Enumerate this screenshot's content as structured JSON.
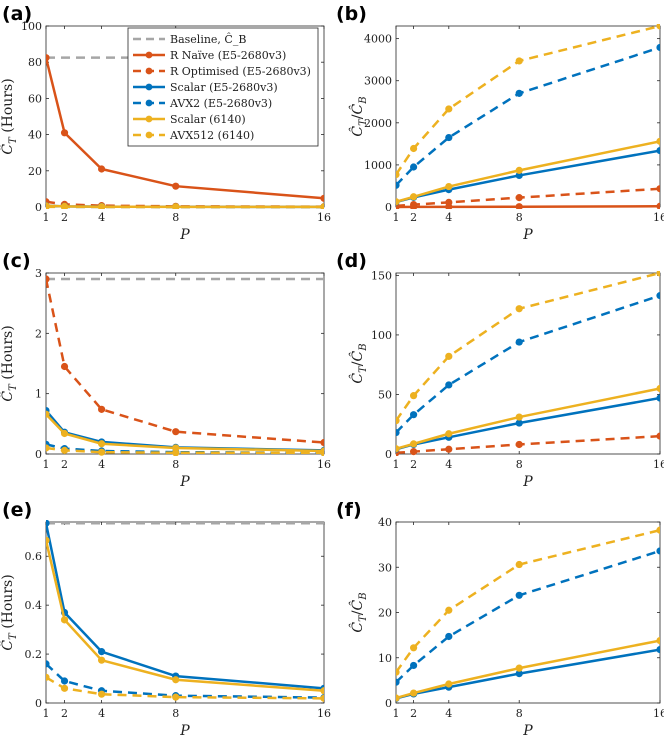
{
  "colors": {
    "baseline": "#a6a6a6",
    "red": "#d95319",
    "blue": "#0072bd",
    "yellow": "#edb120"
  },
  "legend": {
    "position": "top-right of panel (a)",
    "entries": [
      {
        "label": "Baseline, Ĉ_B",
        "color": "#a6a6a6",
        "style": "dashed",
        "marker": false
      },
      {
        "label": "R Naïve (E5-2680v3)",
        "color": "#d95319",
        "style": "solid",
        "marker": true
      },
      {
        "label": "R Optimised (E5-2680v3)",
        "color": "#d95319",
        "style": "dashed",
        "marker": true
      },
      {
        "label": "Scalar (E5-2680v3)",
        "color": "#0072bd",
        "style": "solid",
        "marker": true
      },
      {
        "label": "AVX2 (E5-2680v3)",
        "color": "#0072bd",
        "style": "dashed",
        "marker": true
      },
      {
        "label": "Scalar (6140)",
        "color": "#edb120",
        "style": "solid",
        "marker": true
      },
      {
        "label": "AVX512 (6140)",
        "color": "#edb120",
        "style": "dashed",
        "marker": true
      }
    ]
  },
  "chart_data": [
    {
      "panel": "(a)",
      "type": "line",
      "xlabel": "P",
      "ylabel": "Ĉ_T (Hours)",
      "x": [
        1,
        2,
        4,
        8,
        16
      ],
      "xticks": [
        1,
        2,
        4,
        8,
        16
      ],
      "xlim": [
        1,
        16
      ],
      "ylim": [
        0,
        100
      ],
      "yticks": [
        0,
        20,
        40,
        60,
        80,
        100
      ],
      "grid": false,
      "baseline": {
        "value": 82.5,
        "x_range": [
          1,
          8
        ]
      },
      "series": [
        {
          "name": "R Naïve (E5-2680v3)",
          "color": "red",
          "dashed": false,
          "values": [
            82.5,
            41.0,
            21.0,
            11.5,
            4.8
          ]
        },
        {
          "name": "R Optimised (E5-2680v3)",
          "color": "red",
          "dashed": true,
          "values": [
            2.9,
            1.45,
            0.75,
            0.37,
            0.19
          ]
        },
        {
          "name": "Scalar (E5-2680v3)",
          "color": "blue",
          "dashed": false,
          "values": [
            0.7,
            0.36,
            0.2,
            0.11,
            0.06
          ]
        },
        {
          "name": "AVX2 (E5-2680v3)",
          "color": "blue",
          "dashed": true,
          "values": [
            0.16,
            0.09,
            0.05,
            0.03,
            0.02
          ]
        },
        {
          "name": "Scalar (6140)",
          "color": "yellow",
          "dashed": false,
          "values": [
            0.66,
            0.34,
            0.17,
            0.1,
            0.05
          ]
        },
        {
          "name": "AVX512 (6140)",
          "color": "yellow",
          "dashed": true,
          "values": [
            0.1,
            0.06,
            0.03,
            0.02,
            0.02
          ]
        }
      ]
    },
    {
      "panel": "(b)",
      "type": "line",
      "xlabel": "P",
      "ylabel": "Ĉ_T/Ĉ_B",
      "x": [
        1,
        2,
        4,
        8,
        16
      ],
      "xticks": [
        1,
        2,
        4,
        8,
        16
      ],
      "xlim": [
        1,
        16
      ],
      "ylim": [
        0,
        4300
      ],
      "yticks": [
        0,
        1000,
        2000,
        3000,
        4000
      ],
      "grid": false,
      "series": [
        {
          "name": "R Naïve (E5-2680v3)",
          "color": "red",
          "dashed": false,
          "values": [
            1,
            2,
            4,
            7,
            17
          ]
        },
        {
          "name": "R Optimised (E5-2680v3)",
          "color": "red",
          "dashed": true,
          "values": [
            28,
            57,
            110,
            223,
            434
          ]
        },
        {
          "name": "Scalar (E5-2680v3)",
          "color": "blue",
          "dashed": false,
          "values": [
            118,
            229,
            413,
            750,
            1340
          ]
        },
        {
          "name": "AVX2 (E5-2680v3)",
          "color": "blue",
          "dashed": true,
          "values": [
            516,
            950,
            1650,
            2700,
            3790
          ]
        },
        {
          "name": "Scalar (6140)",
          "color": "yellow",
          "dashed": false,
          "values": [
            125,
            243,
            485,
            870,
            1560
          ]
        },
        {
          "name": "AVX512 (6140)",
          "color": "yellow",
          "dashed": true,
          "values": [
            770,
            1390,
            2330,
            3470,
            4300
          ]
        }
      ]
    },
    {
      "panel": "(c)",
      "type": "line",
      "xlabel": "P",
      "ylabel": "Ĉ_T (Hours)",
      "x": [
        1,
        2,
        4,
        8,
        16
      ],
      "xticks": [
        1,
        2,
        4,
        8,
        16
      ],
      "xlim": [
        1,
        16
      ],
      "ylim": [
        0,
        3
      ],
      "yticks": [
        0,
        1,
        2,
        3
      ],
      "grid": false,
      "baseline": {
        "value": 2.9,
        "x_range": [
          1,
          16
        ]
      },
      "series": [
        {
          "name": "R Optimised (E5-2680v3)",
          "color": "red",
          "dashed": true,
          "values": [
            2.9,
            1.45,
            0.74,
            0.37,
            0.19
          ]
        },
        {
          "name": "Scalar (E5-2680v3)",
          "color": "blue",
          "dashed": false,
          "values": [
            0.72,
            0.36,
            0.2,
            0.11,
            0.06
          ]
        },
        {
          "name": "AVX2 (E5-2680v3)",
          "color": "blue",
          "dashed": true,
          "values": [
            0.16,
            0.09,
            0.05,
            0.03,
            0.02
          ]
        },
        {
          "name": "Scalar (6140)",
          "color": "yellow",
          "dashed": false,
          "values": [
            0.66,
            0.34,
            0.17,
            0.1,
            0.05
          ]
        },
        {
          "name": "AVX512 (6140)",
          "color": "yellow",
          "dashed": true,
          "values": [
            0.1,
            0.06,
            0.03,
            0.02,
            0.02
          ]
        }
      ]
    },
    {
      "panel": "(d)",
      "type": "line",
      "xlabel": "P",
      "ylabel": "Ĉ_T/Ĉ_B",
      "x": [
        1,
        2,
        4,
        8,
        16
      ],
      "xticks": [
        1,
        2,
        4,
        8,
        16
      ],
      "xlim": [
        1,
        16
      ],
      "ylim": [
        0,
        152
      ],
      "yticks": [
        0,
        50,
        100,
        150
      ],
      "grid": false,
      "series": [
        {
          "name": "R Optimised (E5-2680v3)",
          "color": "red",
          "dashed": true,
          "values": [
            1,
            2,
            4,
            8,
            15
          ]
        },
        {
          "name": "Scalar (E5-2680v3)",
          "color": "blue",
          "dashed": false,
          "values": [
            4,
            8,
            14,
            26,
            47
          ]
        },
        {
          "name": "AVX2 (E5-2680v3)",
          "color": "blue",
          "dashed": true,
          "values": [
            18,
            33,
            58,
            94,
            133
          ]
        },
        {
          "name": "Scalar (6140)",
          "color": "yellow",
          "dashed": false,
          "values": [
            4.4,
            8.5,
            17,
            31,
            55
          ]
        },
        {
          "name": "AVX512 (6140)",
          "color": "yellow",
          "dashed": true,
          "values": [
            28,
            49,
            82,
            122,
            152
          ]
        }
      ]
    },
    {
      "panel": "(e)",
      "type": "line",
      "xlabel": "P",
      "ylabel": "Ĉ_T (Hours)",
      "x": [
        1,
        2,
        4,
        8,
        16
      ],
      "xticks": [
        1,
        2,
        4,
        8,
        16
      ],
      "xlim": [
        1,
        16
      ],
      "ylim": [
        0,
        0.74
      ],
      "yticks": [
        0,
        0.2,
        0.4,
        0.6
      ],
      "grid": false,
      "baseline": {
        "value": 0.735,
        "x_range": [
          1,
          16
        ]
      },
      "series": [
        {
          "name": "Scalar (E5-2680v3)",
          "color": "blue",
          "dashed": false,
          "values": [
            0.735,
            0.37,
            0.21,
            0.11,
            0.06
          ]
        },
        {
          "name": "AVX2 (E5-2680v3)",
          "color": "blue",
          "dashed": true,
          "values": [
            0.16,
            0.09,
            0.05,
            0.03,
            0.022
          ]
        },
        {
          "name": "Scalar (6140)",
          "color": "yellow",
          "dashed": false,
          "values": [
            0.665,
            0.34,
            0.175,
            0.095,
            0.05
          ]
        },
        {
          "name": "AVX512 (6140)",
          "color": "yellow",
          "dashed": true,
          "values": [
            0.105,
            0.06,
            0.036,
            0.024,
            0.019
          ]
        }
      ]
    },
    {
      "panel": "(f)",
      "type": "line",
      "xlabel": "P",
      "ylabel": "Ĉ_T/Ĉ_B",
      "x": [
        1,
        2,
        4,
        8,
        16
      ],
      "xticks": [
        1,
        2,
        4,
        8,
        16
      ],
      "xlim": [
        1,
        16
      ],
      "ylim": [
        0,
        40
      ],
      "yticks": [
        0,
        10,
        20,
        30,
        40
      ],
      "grid": false,
      "series": [
        {
          "name": "Scalar (E5-2680v3)",
          "color": "blue",
          "dashed": false,
          "values": [
            1,
            2,
            3.5,
            6.5,
            11.8
          ]
        },
        {
          "name": "AVX2 (E5-2680v3)",
          "color": "blue",
          "dashed": true,
          "values": [
            4.6,
            8.3,
            14.7,
            23.8,
            33.6
          ]
        },
        {
          "name": "Scalar (6140)",
          "color": "yellow",
          "dashed": false,
          "values": [
            1.1,
            2.2,
            4.2,
            7.7,
            13.8
          ]
        },
        {
          "name": "AVX512 (6140)",
          "color": "yellow",
          "dashed": true,
          "values": [
            6.8,
            12.2,
            20.5,
            30.6,
            38.2
          ]
        }
      ]
    }
  ]
}
